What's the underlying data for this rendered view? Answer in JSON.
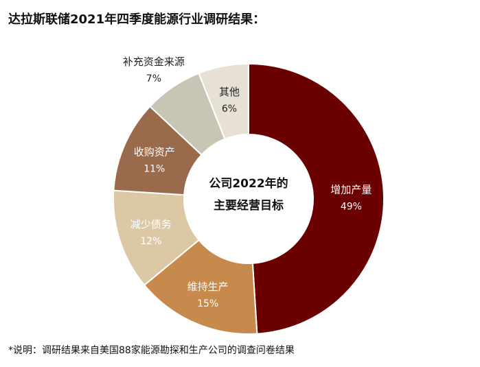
{
  "chart_data": {
    "type": "pie",
    "title": "达拉斯联储2021年四季度能源行业调研结果：",
    "center_label": [
      "公司2022年的",
      "主要经营目标"
    ],
    "note": "*说明：调研结果来自美国88家能源勘探和生产公司的调查问卷结果",
    "slices": [
      {
        "label": "增加产量",
        "value": 49,
        "display": "49%",
        "color": "#6b0000",
        "text_color": "#ffffff",
        "label_outside": false
      },
      {
        "label": "维持生产",
        "value": 15,
        "display": "15%",
        "color": "#c68a4c",
        "text_color": "#ffffff",
        "label_outside": false
      },
      {
        "label": "减少债务",
        "value": 12,
        "display": "12%",
        "color": "#dcc8a4",
        "text_color": "#ffffff",
        "label_outside": false
      },
      {
        "label": "收购资产",
        "value": 11,
        "display": "11%",
        "color": "#9a6a4c",
        "text_color": "#ffffff",
        "label_outside": false
      },
      {
        "label": "补充资金来源",
        "value": 7,
        "display": "7%",
        "color": "#c8c5b4",
        "text_color": "#222222",
        "label_outside": true
      },
      {
        "label": "其他",
        "value": 6,
        "display": "6%",
        "color": "#e6e1d3",
        "text_color": "#222222",
        "label_outside": false
      }
    ]
  }
}
